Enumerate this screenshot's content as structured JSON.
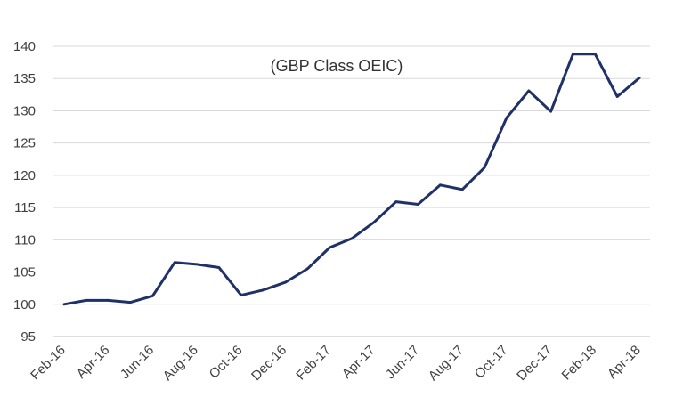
{
  "chart_data": {
    "type": "line",
    "title": "",
    "annotation": "(GBP Class OEIC)",
    "xlabel": "",
    "ylabel": "",
    "x": [
      "Feb-16",
      "Mar-16",
      "Apr-16",
      "May-16",
      "Jun-16",
      "Jul-16",
      "Aug-16",
      "Sep-16",
      "Oct-16",
      "Nov-16",
      "Dec-16",
      "Jan-17",
      "Feb-17",
      "Mar-17",
      "Apr-17",
      "May-17",
      "Jun-17",
      "Jul-17",
      "Aug-17",
      "Sep-17",
      "Oct-17",
      "Nov-17",
      "Dec-17",
      "Jan-18",
      "Feb-18",
      "Mar-18",
      "Apr-18"
    ],
    "x_tick_labels": [
      "Feb-16",
      "Apr-16",
      "Jun-16",
      "Aug-16",
      "Oct-16",
      "Dec-16",
      "Feb-17",
      "Apr-17",
      "Jun-17",
      "Aug-17",
      "Oct-17",
      "Dec-17",
      "Feb-18",
      "Apr-18"
    ],
    "series": [
      {
        "values": [
          100.0,
          100.6,
          100.6,
          100.3,
          101.3,
          106.5,
          106.2,
          105.7,
          101.4,
          102.2,
          103.4,
          105.5,
          108.8,
          110.2,
          112.7,
          115.9,
          115.5,
          118.5,
          117.8,
          121.2,
          128.9,
          133.1,
          129.9,
          138.8,
          138.8,
          132.2,
          135.1
        ]
      }
    ],
    "ylim": [
      95,
      140
    ],
    "y_ticks": [
      95,
      100,
      105,
      110,
      115,
      120,
      125,
      130,
      135,
      140
    ],
    "grid": true,
    "legend": "none",
    "colors": {
      "line": "#1f3166",
      "grid": "#d9d9d9",
      "axis": "#bfbfbf"
    }
  }
}
